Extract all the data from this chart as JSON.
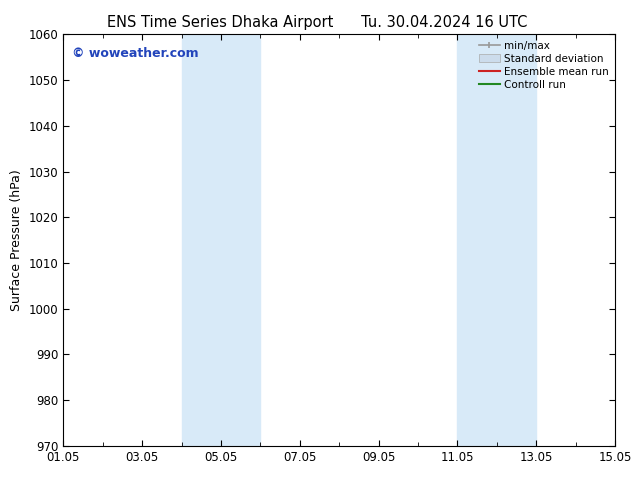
{
  "title_left": "ENS Time Series Dhaka Airport",
  "title_right": "Tu. 30.04.2024 16 UTC",
  "ylabel": "Surface Pressure (hPa)",
  "ylim": [
    970,
    1060
  ],
  "yticks": [
    970,
    980,
    990,
    1000,
    1010,
    1020,
    1030,
    1040,
    1050,
    1060
  ],
  "xlim": [
    0,
    14
  ],
  "xtick_labels": [
    "01.05",
    "03.05",
    "05.05",
    "07.05",
    "09.05",
    "11.05",
    "13.05",
    "15.05"
  ],
  "xtick_positions": [
    0,
    2,
    4,
    6,
    8,
    10,
    12,
    14
  ],
  "shaded_bands": [
    {
      "xstart": 3,
      "xend": 4
    },
    {
      "xstart": 4,
      "xend": 5
    },
    {
      "xstart": 10,
      "xend": 11
    },
    {
      "xstart": 11,
      "xend": 12
    }
  ],
  "shaded_color": "#d8eaf8",
  "watermark_text": "© woweather.com",
  "watermark_color": "#2244bb",
  "legend_items": [
    {
      "label": "min/max",
      "color": "#999999",
      "lw": 1.2
    },
    {
      "label": "Standard deviation",
      "color": "#ccdcec",
      "lw": 8
    },
    {
      "label": "Ensemble mean run",
      "color": "#cc2222",
      "lw": 1.5
    },
    {
      "label": "Controll run",
      "color": "#228822",
      "lw": 1.5
    }
  ],
  "bg_color": "#ffffff",
  "axes_bg_color": "#ffffff",
  "title_fontsize": 10.5,
  "ylabel_fontsize": 9,
  "tick_label_fontsize": 8.5,
  "watermark_fontsize": 9,
  "legend_fontsize": 7.5
}
